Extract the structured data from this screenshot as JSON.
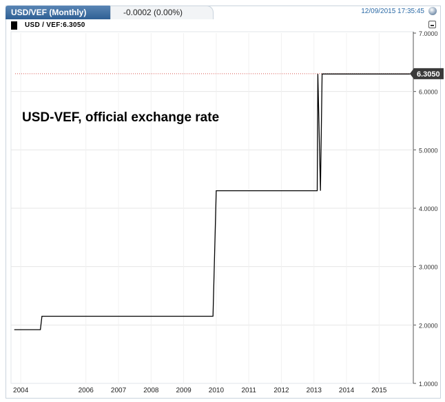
{
  "header": {
    "title": "USD/VEF (Monthly)",
    "change": "-0.0002 (0.00%)",
    "timestamp": "12/09/2015 17:35:45"
  },
  "legend": {
    "label": "USD / VEF:6.3050"
  },
  "chart_data": {
    "type": "line",
    "annotation": "USD-VEF, official exchange rate",
    "last_value_label": "6.3050",
    "ylim": [
      1.0,
      7.0
    ],
    "y_ticks": [
      "1.0000",
      "2.0000",
      "3.0000",
      "4.0000",
      "5.0000",
      "6.0000",
      "7.0000"
    ],
    "x_tick_labels": [
      {
        "label": "2004",
        "year": 2004.0
      },
      {
        "label": "2006",
        "year": 2006.0
      },
      {
        "label": "2007",
        "year": 2007.0
      },
      {
        "label": "2008",
        "year": 2008.0
      },
      {
        "label": "2009",
        "year": 2009.0
      },
      {
        "label": "2010",
        "year": 2010.0
      },
      {
        "label": "2011",
        "year": 2011.0
      },
      {
        "label": "2012",
        "year": 2012.0
      },
      {
        "label": "2013",
        "year": 2013.0
      },
      {
        "label": "2014",
        "year": 2014.0
      },
      {
        "label": "2015",
        "year": 2015.0
      }
    ],
    "xlim": [
      2003.7,
      2016.05
    ],
    "grid": true,
    "series": [
      {
        "color": "#000000",
        "points": [
          [
            2003.8,
            1.92
          ],
          [
            2004.6,
            1.92
          ],
          [
            2004.65,
            2.15
          ],
          [
            2009.9,
            2.15
          ],
          [
            2010.0,
            4.3
          ],
          [
            2013.1,
            4.3
          ],
          [
            2013.12,
            6.3
          ],
          [
            2013.2,
            4.3
          ],
          [
            2013.25,
            6.3
          ],
          [
            2015.95,
            6.3
          ]
        ]
      }
    ],
    "reference_line": {
      "value": 6.305,
      "color": "#d9534f"
    }
  }
}
